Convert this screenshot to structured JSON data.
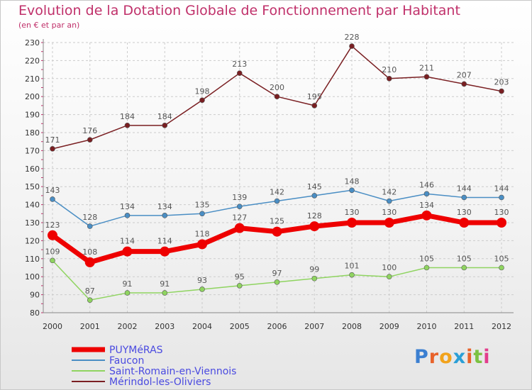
{
  "title": "Evolution de la Dotation Globale de Fonctionnement par Habitant",
  "subtitle": "(en € et par an)",
  "logo": {
    "letters": [
      "P",
      "r",
      "o",
      "x",
      "i",
      "t",
      "i"
    ],
    "colors": [
      "#3b7fd1",
      "#e8622a",
      "#f2a31c",
      "#2a9fd6",
      "#e8622a",
      "#7cc242",
      "#e33d8c"
    ]
  },
  "chart_data": {
    "type": "line",
    "title": "Evolution de la Dotation Globale de Fonctionnement par Habitant",
    "subtitle": "(en € et par an)",
    "x": [
      "2000",
      "2001",
      "2002",
      "2003",
      "2004",
      "2005",
      "2006",
      "2007",
      "2008",
      "2009",
      "2010",
      "2011",
      "2012"
    ],
    "ylim": [
      80,
      230
    ],
    "yticks": [
      80,
      90,
      100,
      110,
      120,
      130,
      140,
      150,
      160,
      170,
      180,
      190,
      200,
      210,
      220,
      230
    ],
    "grid": true,
    "legend_position": "bottom-left",
    "series": [
      {
        "name": "PUYMéRAS",
        "color": "#ee0000",
        "emphasis": true,
        "values": [
          123,
          108,
          114,
          114,
          118,
          127,
          125,
          128,
          130,
          130,
          134,
          130,
          130
        ]
      },
      {
        "name": "Faucon",
        "color": "#4a8ec4",
        "emphasis": false,
        "values": [
          143,
          128,
          134,
          134,
          135,
          139,
          142,
          145,
          148,
          142,
          146,
          144,
          144
        ]
      },
      {
        "name": "Saint-Romain-en-Viennois",
        "color": "#8fd460",
        "emphasis": false,
        "values": [
          109,
          87,
          91,
          91,
          93,
          95,
          97,
          99,
          101,
          100,
          105,
          105,
          105
        ]
      },
      {
        "name": "Mérindol-les-Oliviers",
        "color": "#7a1f22",
        "emphasis": false,
        "values": [
          171,
          176,
          184,
          184,
          198,
          213,
          200,
          195,
          228,
          210,
          211,
          207,
          203
        ]
      }
    ]
  }
}
